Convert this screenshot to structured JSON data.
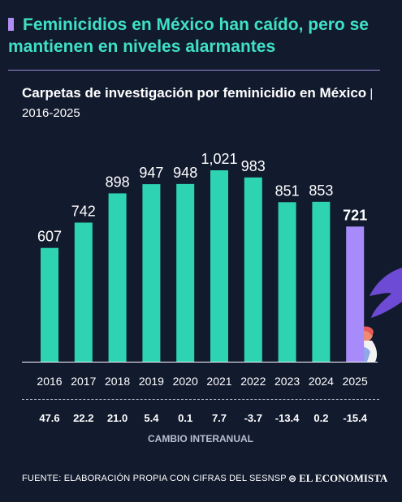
{
  "headline": "Feminicidios en México han caído, pero se mantienen en niveles alarmantes",
  "subtitle": {
    "main": "Carpetas de investigación por feminicidio en México",
    "separator": " | ",
    "years": "2016-2025"
  },
  "chart_data": {
    "type": "bar",
    "categories": [
      "2016",
      "2017",
      "2018",
      "2019",
      "2020",
      "2021",
      "2022",
      "2023",
      "2024",
      "2025"
    ],
    "values": [
      607,
      742,
      898,
      947,
      948,
      1021,
      983,
      851,
      853,
      721
    ],
    "value_labels": [
      "607",
      "742",
      "898",
      "947",
      "948",
      "1,021",
      "983",
      "851",
      "853",
      "721"
    ],
    "highlight_index": 9,
    "ylim": [
      0,
      1021
    ],
    "bar_color": "#2ed3b3",
    "highlight_color": "#a78bfa",
    "yoy_change": [
      "47.6",
      "22.2",
      "21.0",
      "5.4",
      "0.1",
      "7.7",
      "-3.7",
      "-13.4",
      "0.2",
      "-15.4"
    ],
    "yoy_label": "CAMBIO INTERANUAL"
  },
  "footer": {
    "source": "FUENTE: ELABORACIÓN PROPIA CON CIFRAS DEL SESNSP",
    "brand": "EL ECONOMISTA"
  }
}
